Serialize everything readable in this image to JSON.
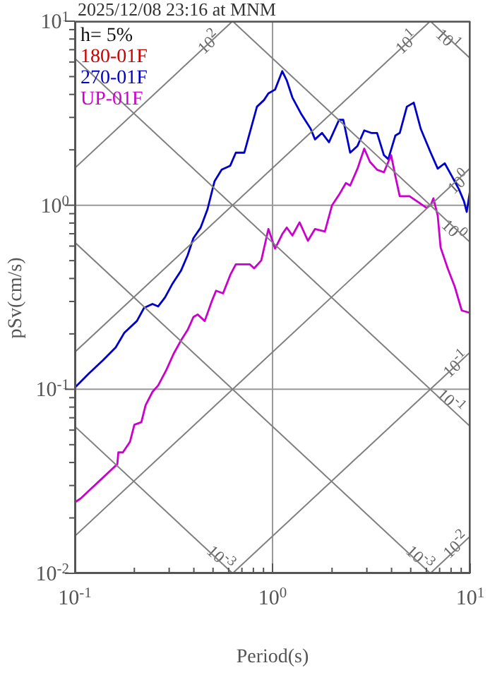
{
  "chart_data": {
    "type": "line",
    "title": "2025/12/08 23:16 at MNM",
    "xlabel": "Period(s)",
    "ylabel": "pSv(cm/s)",
    "log": "xy",
    "grid": true,
    "legend": "top left",
    "xlim": [
      0.1,
      10
    ],
    "ylim": [
      0.01,
      10
    ],
    "xticks": [
      {
        "value": 0.1,
        "label": "10$^{-1}$"
      },
      {
        "value": 0.2,
        "label": null
      },
      {
        "value": 0.3,
        "label": null
      },
      {
        "value": 0.4,
        "label": null
      },
      {
        "value": 0.5,
        "label": null
      },
      {
        "value": 0.6,
        "label": null
      },
      {
        "value": 0.7,
        "label": null
      },
      {
        "value": 0.8,
        "label": null
      },
      {
        "value": 0.9,
        "label": null
      },
      {
        "value": 1,
        "label": "10$^{0}$"
      },
      {
        "value": 2,
        "label": null
      },
      {
        "value": 3,
        "label": null
      },
      {
        "value": 4,
        "label": null
      },
      {
        "value": 5,
        "label": null
      },
      {
        "value": 6,
        "label": null
      },
      {
        "value": 7,
        "label": null
      },
      {
        "value": 8,
        "label": null
      },
      {
        "value": 9,
        "label": null
      },
      {
        "value": 10,
        "label": "10$^{1}$"
      }
    ],
    "yticks": [
      {
        "value": 0.01,
        "label": "10$^{-2}$"
      },
      {
        "value": 0.02,
        "label": null
      },
      {
        "value": 0.03,
        "label": null
      },
      {
        "value": 0.04,
        "label": null
      },
      {
        "value": 0.05,
        "label": null
      },
      {
        "value": 0.06,
        "label": null
      },
      {
        "value": 0.07,
        "label": null
      },
      {
        "value": 0.08,
        "label": null
      },
      {
        "value": 0.09,
        "label": null
      },
      {
        "value": 0.1,
        "label": "10$^{-1}$"
      },
      {
        "value": 0.2,
        "label": null
      },
      {
        "value": 0.3,
        "label": null
      },
      {
        "value": 0.4,
        "label": null
      },
      {
        "value": 0.5,
        "label": null
      },
      {
        "value": 0.6,
        "label": null
      },
      {
        "value": 0.7,
        "label": null
      },
      {
        "value": 0.8,
        "label": null
      },
      {
        "value": 0.9,
        "label": null
      },
      {
        "value": 1,
        "label": "10$^{0}$"
      },
      {
        "value": 2,
        "label": null
      },
      {
        "value": 3,
        "label": null
      },
      {
        "value": 4,
        "label": null
      },
      {
        "value": 5,
        "label": null
      },
      {
        "value": 6,
        "label": null
      },
      {
        "value": 7,
        "label": null
      },
      {
        "value": 8,
        "label": null
      },
      {
        "value": 9,
        "label": null
      },
      {
        "value": 10,
        "label": "10$^{1}$"
      }
    ],
    "series": [
      {
        "name": "180-01F",
        "color": "#cc0000"
      },
      {
        "name": "270-01F",
        "color": "#0000cc",
        "x": [
          0.1,
          0.118,
          0.139,
          0.161,
          0.178,
          0.206,
          0.224,
          0.247,
          0.264,
          0.286,
          0.311,
          0.344,
          0.372,
          0.398,
          0.433,
          0.469,
          0.509,
          0.553,
          0.611,
          0.652,
          0.72,
          0.834,
          0.906,
          0.953,
          1.03,
          1.12,
          1.18,
          1.26,
          1.39,
          1.56,
          1.64,
          1.78,
          1.93,
          2.17,
          2.28,
          2.47,
          2.69,
          2.91,
          3.16,
          3.38,
          3.66,
          3.85,
          4.18,
          4.4,
          4.78,
          5.18,
          5.62,
          6.31,
          6.85,
          7.43,
          8.07,
          8.77,
          9.3,
          9.6,
          10
        ],
        "values": [
          0.102,
          0.122,
          0.144,
          0.169,
          0.203,
          0.235,
          0.277,
          0.291,
          0.282,
          0.316,
          0.373,
          0.44,
          0.535,
          0.663,
          0.756,
          0.952,
          1.35,
          1.56,
          1.64,
          1.93,
          1.93,
          3.43,
          3.73,
          4.05,
          4.25,
          5.35,
          4.77,
          3.85,
          3.16,
          2.6,
          2.28,
          2.47,
          2.2,
          2.91,
          2.91,
          1.93,
          2.1,
          2.55,
          2.47,
          2.47,
          1.87,
          1.78,
          2.39,
          2.47,
          3.43,
          3.61,
          2.6,
          1.93,
          1.58,
          1.69,
          1.44,
          1.22,
          1.05,
          0.92,
          1.22
        ]
      },
      {
        "name": "UP-01F",
        "color": "#cc00cc",
        "x": [
          0.1,
          0.107,
          0.122,
          0.137,
          0.151,
          0.164,
          0.166,
          0.175,
          0.19,
          0.2,
          0.217,
          0.228,
          0.247,
          0.264,
          0.291,
          0.316,
          0.344,
          0.372,
          0.398,
          0.418,
          0.454,
          0.493,
          0.518,
          0.562,
          0.611,
          0.652,
          0.708,
          0.769,
          0.807,
          0.877,
          0.953,
          1.03,
          1.12,
          1.18,
          1.26,
          1.37,
          1.51,
          1.64,
          1.84,
          2.0,
          2.17,
          2.35,
          2.47,
          2.69,
          2.91,
          3.11,
          3.38,
          3.66,
          3.98,
          4.18,
          4.4,
          4.93,
          5.53,
          6.01,
          6.31,
          6.51,
          6.85,
          7.08,
          7.69,
          8.35,
          9.06,
          10
        ],
        "values": [
          0.0243,
          0.0255,
          0.0291,
          0.0327,
          0.0361,
          0.0392,
          0.0454,
          0.0454,
          0.0518,
          0.0641,
          0.0663,
          0.082,
          0.0968,
          0.105,
          0.128,
          0.156,
          0.184,
          0.21,
          0.247,
          0.255,
          0.235,
          0.301,
          0.343,
          0.332,
          0.418,
          0.477,
          0.477,
          0.477,
          0.454,
          0.501,
          0.743,
          0.581,
          0.697,
          0.757,
          0.685,
          0.807,
          0.641,
          0.743,
          0.72,
          1.0,
          1.14,
          1.32,
          1.28,
          1.58,
          2.03,
          1.72,
          1.56,
          1.51,
          1.87,
          1.44,
          1.12,
          1.12,
          1.03,
          0.968,
          1.0,
          1.09,
          0.877,
          0.59,
          0.454,
          0.361,
          0.268,
          0.26
        ]
      },
      {
        "color": "#808080",
        "x": [
          0.1,
          0.628
        ],
        "values": [
          1.592,
          10
        ]
      },
      {
        "color": "#808080",
        "x": [
          0.1,
          6.28
        ],
        "values": [
          0.1592,
          10
        ]
      },
      {
        "color": "#808080",
        "x": [
          0.1,
          10
        ],
        "values": [
          0.01592,
          1.592
        ]
      },
      {
        "color": "#808080",
        "x": [
          0.628,
          10
        ],
        "values": [
          0.01,
          0.1592
        ]
      },
      {
        "color": "#808080",
        "x": [
          6.28,
          10
        ],
        "values": [
          0.01,
          0.01592
        ]
      },
      {
        "color": "#808080",
        "x": [
          0.1,
          0.628
        ],
        "values": [
          0.0628,
          0.01
        ]
      },
      {
        "color": "#808080",
        "x": [
          0.1,
          6.28
        ],
        "values": [
          0.628,
          0.01
        ]
      },
      {
        "color": "#808080",
        "x": [
          0.1,
          10
        ],
        "values": [
          6.28,
          0.0628
        ]
      },
      {
        "color": "#808080",
        "x": [
          0.628,
          10
        ],
        "values": [
          10,
          0.628
        ]
      },
      {
        "color": "#808080",
        "x": [
          6.28,
          10
        ],
        "values": [
          10,
          6.28
        ]
      }
    ],
    "annotations": [
      "h= 5%",
      {
        "text": "10$^{2}$",
        "x": 0.47,
        "y": 7.8
      },
      {
        "text": "10$^{1}$",
        "x": 4.7,
        "y": 7.8
      },
      {
        "text": "10$^{1}$",
        "x": 7.8,
        "y": 8.05
      },
      {
        "text": "10$^{0}$",
        "x": 8.6,
        "y": 1.37
      },
      {
        "text": "10$^{0}$",
        "x": 8.4,
        "y": 0.748
      },
      {
        "text": "10$^{-1}$",
        "x": 8.4,
        "y": 0.14
      },
      {
        "text": "10$^{-1}$",
        "x": 8.1,
        "y": 0.088
      },
      {
        "text": "10$^{-3}$",
        "x": 0.55,
        "y": 0.0124
      },
      {
        "text": "10$^{-3}$",
        "x": 5.6,
        "y": 0.0124
      },
      {
        "text": "10$^{-2}$",
        "x": 8.4,
        "y": 0.0144
      }
    ]
  }
}
